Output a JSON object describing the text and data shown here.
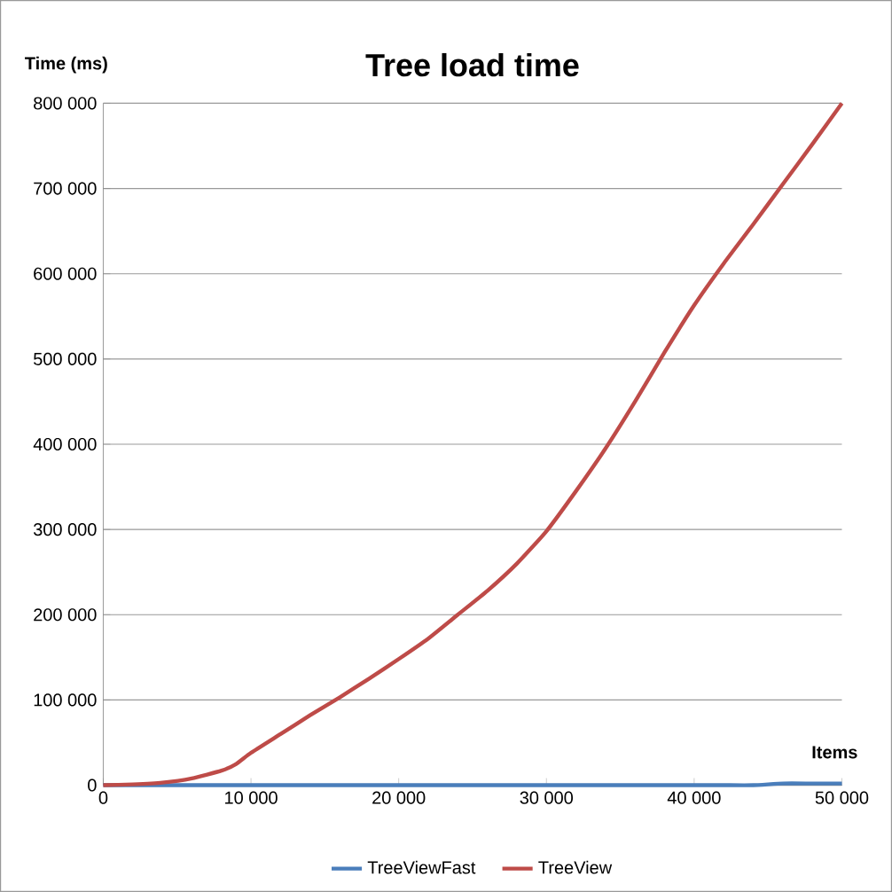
{
  "chart_data": {
    "type": "line",
    "title": "Tree load time",
    "xlabel": "Items",
    "ylabel": "Time (ms)",
    "x": [
      0,
      2000,
      4000,
      6000,
      8000,
      9000,
      10000,
      12000,
      14000,
      16000,
      18000,
      20000,
      22000,
      24000,
      26000,
      28000,
      30000,
      32000,
      34000,
      36000,
      38000,
      40000,
      42000,
      44000,
      46000,
      48000,
      50000
    ],
    "series": [
      {
        "name": "TreeViewFast",
        "color": "#4a7ebb",
        "values": [
          0,
          0,
          0,
          0,
          0,
          0,
          0,
          0,
          0,
          0,
          0,
          0,
          0,
          0,
          0,
          0,
          0,
          0,
          0,
          0,
          0,
          0,
          0,
          0,
          2000,
          2000,
          2000
        ]
      },
      {
        "name": "TreeView",
        "color": "#be4b48",
        "values": [
          0,
          1000,
          3000,
          8000,
          17000,
          25000,
          38000,
          60000,
          82000,
          103000,
          125000,
          148000,
          172000,
          200000,
          228000,
          260000,
          298000,
          345000,
          395000,
          450000,
          508000,
          563000,
          612000,
          658000,
          705000,
          752000,
          800000
        ]
      }
    ],
    "xlim": [
      0,
      50000
    ],
    "ylim": [
      0,
      800000
    ],
    "xticks": [
      0,
      {
        "value": 10000,
        "label": "10 000"
      },
      {
        "value": 20000,
        "label": "20 000"
      },
      {
        "value": 30000,
        "label": "30 000"
      },
      {
        "value": 40000,
        "label": "40 000"
      },
      {
        "value": 50000,
        "label": "50 000"
      }
    ],
    "yticks": [
      0,
      {
        "value": 100000,
        "label": "100 000"
      },
      {
        "value": 200000,
        "label": "200 000"
      },
      {
        "value": 300000,
        "label": "300 000"
      },
      {
        "value": 400000,
        "label": "400 000"
      },
      {
        "value": 500000,
        "label": "500 000"
      },
      {
        "value": 600000,
        "label": "600 000"
      },
      {
        "value": 700000,
        "label": "700 000"
      },
      {
        "value": 800000,
        "label": "800 000"
      }
    ],
    "grid": "y",
    "legend": "bottom",
    "marker": "none",
    "line_style": "solid"
  }
}
